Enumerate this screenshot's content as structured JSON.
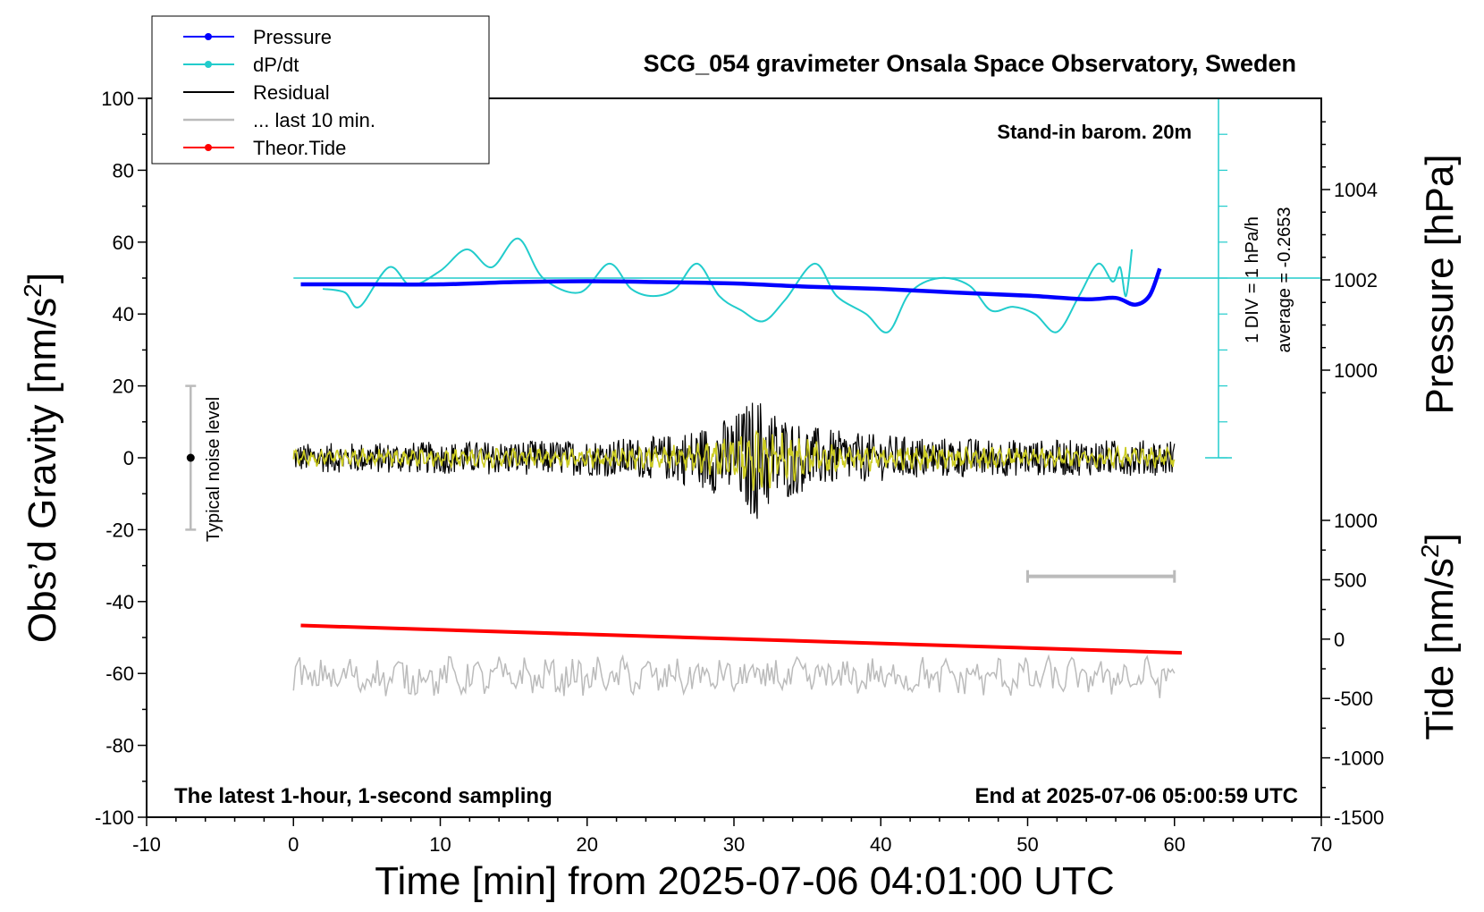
{
  "chart_data": {
    "type": "line",
    "title": "SCG_054 gravimeter Onsala Space Observatory, Sweden",
    "xlabel": "Time [min] from 2025-07-06 04:01:00 UTC",
    "ylabel_left_main": "Obs’d Gravity [nm/s",
    "ylabel_left_sup": "2",
    "ylabel_left_end": "]",
    "ylabel_right_top": "Pressure [hPa]",
    "ylabel_right_bottom_main": "Tide [nm/s",
    "ylabel_right_bottom_sup": "2",
    "ylabel_right_bottom_end": "]",
    "xlim": [
      -10,
      70
    ],
    "ylim": [
      -100,
      100
    ],
    "pressure_ylim": [
      1000,
      1004
    ],
    "tide_ylim": [
      -1500,
      1000
    ],
    "x_ticks": [
      "-10",
      "0",
      "10",
      "20",
      "30",
      "40",
      "50",
      "60",
      "70"
    ],
    "y_ticks": [
      "100",
      "80",
      "60",
      "40",
      "20",
      "0",
      "-20",
      "-40",
      "-60",
      "-80",
      "-100"
    ],
    "pressure_ticks": [
      "1004",
      "1002",
      "1000"
    ],
    "tide_ticks": [
      "1000",
      "500",
      "0",
      "-500",
      "-1000",
      "-1500"
    ],
    "legend": [
      {
        "label": "Pressure",
        "color": "#0000ff",
        "marker": true
      },
      {
        "label": "dP/dt",
        "color": "#22cccc",
        "marker": true
      },
      {
        "label": "Residual",
        "color": "#000000",
        "marker": false
      },
      {
        "label": "... last 10 min.",
        "color": "#bbbbbb",
        "marker": false
      },
      {
        "label": "Theor.Tide",
        "color": "#ff0000",
        "marker": true
      }
    ],
    "annotations": {
      "stand_in": "Stand-in barom. 20m",
      "div_label": "1 DIV = 1 hPa/h",
      "average_label": "average = -0.2653",
      "noise_label": "Typical noise level",
      "latest": "The latest 1-hour, 1-second sampling",
      "end_at": "End at 2025-07-06 05:00:59 UTC"
    },
    "series": [
      {
        "name": "Pressure",
        "color": "#0000ff",
        "axis": "pressure",
        "x": [
          0.5,
          5,
          10,
          15,
          20,
          25,
          30,
          35,
          40,
          45,
          50,
          54,
          56,
          57.3,
          58.3,
          59
        ],
        "y": [
          1001.9,
          1001.9,
          1001.9,
          1001.95,
          1001.97,
          1001.95,
          1001.92,
          1001.85,
          1001.8,
          1001.72,
          1001.65,
          1001.57,
          1001.6,
          1001.45,
          1001.65,
          1002.25
        ]
      },
      {
        "name": "dP/dt",
        "color": "#22cccc",
        "axis": "gravity",
        "x": [
          2,
          3.5,
          4.5,
          6.5,
          8,
          10,
          11.8,
          13.5,
          15.3,
          17,
          19.5,
          21.5,
          23,
          24.5,
          26,
          27.5,
          29,
          30.5,
          32,
          33.5,
          35.5,
          37,
          39,
          40.5,
          42,
          44,
          46,
          47.5,
          49,
          50.5,
          52,
          53.5,
          54.8,
          55.8,
          56.3,
          56.7,
          57.1
        ],
        "y": [
          47,
          46,
          42,
          53,
          48,
          52,
          58,
          53,
          61,
          50,
          46,
          54,
          47,
          45,
          47,
          54,
          45,
          41,
          38,
          44,
          54,
          45,
          40,
          35,
          46,
          50,
          48,
          41,
          42,
          40,
          35,
          45,
          54,
          49,
          53,
          45,
          58
        ]
      },
      {
        "name": "Residual",
        "color": "#000000",
        "axis": "gravity",
        "x_start": 0,
        "x_end": 60,
        "baseline": 0,
        "amplitude_profile_x": [
          0,
          10,
          20,
          25,
          28,
          30,
          31.5,
          33,
          35,
          38,
          42,
          50,
          60
        ],
        "amplitude_profile_y": [
          4,
          4.5,
          5,
          6,
          9,
          12,
          18,
          13,
          9,
          7,
          6,
          5,
          5
        ]
      },
      {
        "name": "... last 10 min.",
        "color": "#bbbbbb",
        "axis": "gravity",
        "x_start": 0,
        "x_end": 60,
        "baseline": -61,
        "amplitude": 4
      },
      {
        "name": "Theor.Tide",
        "color": "#ff0000",
        "axis": "tide",
        "x": [
          0.5,
          60.5
        ],
        "y": [
          115,
          -115
        ]
      }
    ],
    "noise_level": {
      "x": -7,
      "center": 0,
      "half_range": 20
    },
    "window_bar": {
      "x": [
        50,
        60
      ],
      "y": -33
    },
    "dpdt_zero_line_y": 50,
    "dpdt_axis": {
      "x": 63,
      "y_top": 100,
      "y_bottom": 0
    }
  }
}
